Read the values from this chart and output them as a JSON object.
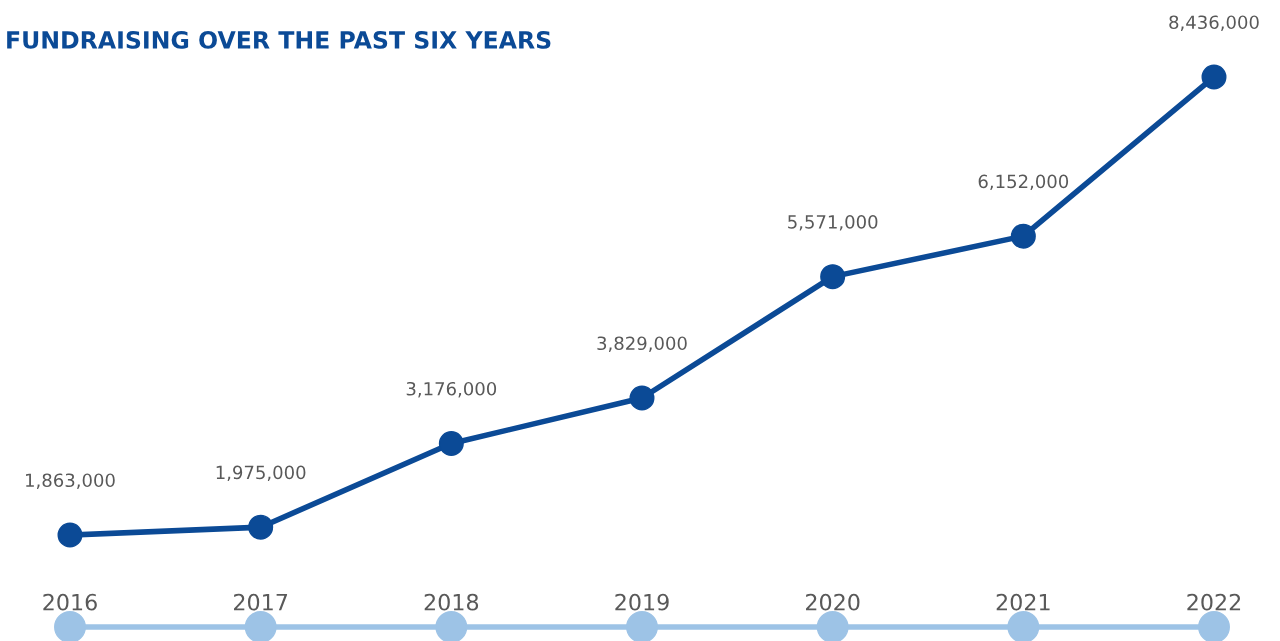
{
  "chart_data": {
    "type": "line",
    "title": "FUNDRAISING OVER THE PAST SIX YEARS",
    "categories": [
      "2016",
      "2017",
      "2018",
      "2019",
      "2020",
      "2021",
      "2022"
    ],
    "series": [
      {
        "color": "#0b4a96",
        "values": [
          1863000,
          1975000,
          3176000,
          3829000,
          5571000,
          6152000,
          8436000
        ],
        "value_labels": [
          "1,863,000",
          "1,975,000",
          "3,176,000",
          "3,829,000",
          "5,571,000",
          "6,152,000",
          "8,436,000"
        ]
      }
    ],
    "marker": "circle",
    "line_style": "solid",
    "grid": false,
    "legend": false,
    "tick_labels": "x"
  }
}
